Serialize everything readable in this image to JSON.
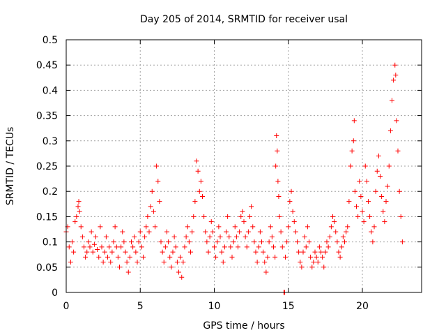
{
  "chart_data": {
    "type": "scatter",
    "title": "Day 205 of 2014, SRMTID for receiver usal",
    "xlabel": "GPS time / hours",
    "ylabel": "SRMTID / TECUs",
    "xlim": [
      0,
      24
    ],
    "ylim": [
      0,
      0.5
    ],
    "x_ticks": [
      0,
      5,
      10,
      15,
      20
    ],
    "x_tick_labels": [
      "0",
      "5",
      "10",
      "15",
      "20"
    ],
    "y_ticks": [
      0,
      0.05,
      0.1,
      0.15,
      0.2,
      0.25,
      0.3,
      0.35,
      0.4,
      0.45,
      0.5
    ],
    "y_tick_labels": [
      "0",
      "0.05",
      "0.1",
      "0.15",
      "0.2",
      "0.25",
      "0.3",
      "0.35",
      "0.4",
      "0.45",
      "0.5"
    ],
    "grid": true,
    "marker": "+",
    "series": [
      {
        "name": "SRMTID",
        "color": "#ff0000",
        "points": [
          [
            0.0,
            0.12
          ],
          [
            0.1,
            0.13
          ],
          [
            0.2,
            0.09
          ],
          [
            0.3,
            0.06
          ],
          [
            0.4,
            0.1
          ],
          [
            0.5,
            0.08
          ],
          [
            0.6,
            0.14
          ],
          [
            0.7,
            0.15
          ],
          [
            0.8,
            0.17
          ],
          [
            0.85,
            0.18
          ],
          [
            0.9,
            0.16
          ],
          [
            1.0,
            0.13
          ],
          [
            1.1,
            0.11
          ],
          [
            1.2,
            0.09
          ],
          [
            1.3,
            0.07
          ],
          [
            1.4,
            0.08
          ],
          [
            1.5,
            0.1
          ],
          [
            1.6,
            0.09
          ],
          [
            1.7,
            0.12
          ],
          [
            1.8,
            0.08
          ],
          [
            1.9,
            0.095
          ],
          [
            2.0,
            0.11
          ],
          [
            2.1,
            0.085
          ],
          [
            2.2,
            0.07
          ],
          [
            2.3,
            0.13
          ],
          [
            2.4,
            0.09
          ],
          [
            2.5,
            0.06
          ],
          [
            2.6,
            0.08
          ],
          [
            2.7,
            0.11
          ],
          [
            2.8,
            0.07
          ],
          [
            2.9,
            0.09
          ],
          [
            3.0,
            0.06
          ],
          [
            3.1,
            0.08
          ],
          [
            3.2,
            0.1
          ],
          [
            3.3,
            0.13
          ],
          [
            3.4,
            0.09
          ],
          [
            3.5,
            0.07
          ],
          [
            3.6,
            0.05
          ],
          [
            3.7,
            0.09
          ],
          [
            3.8,
            0.12
          ],
          [
            3.9,
            0.1
          ],
          [
            4.0,
            0.08
          ],
          [
            4.1,
            0.06
          ],
          [
            4.2,
            0.04
          ],
          [
            4.3,
            0.07
          ],
          [
            4.4,
            0.1
          ],
          [
            4.5,
            0.09
          ],
          [
            4.6,
            0.11
          ],
          [
            4.7,
            0.08
          ],
          [
            4.8,
            0.06
          ],
          [
            4.9,
            0.1
          ],
          [
            5.0,
            0.12
          ],
          [
            5.1,
            0.09
          ],
          [
            5.2,
            0.07
          ],
          [
            5.3,
            0.11
          ],
          [
            5.4,
            0.13
          ],
          [
            5.5,
            0.15
          ],
          [
            5.6,
            0.12
          ],
          [
            5.7,
            0.17
          ],
          [
            5.8,
            0.2
          ],
          [
            5.9,
            0.16
          ],
          [
            6.0,
            0.13
          ],
          [
            6.1,
            0.25
          ],
          [
            6.2,
            0.22
          ],
          [
            6.3,
            0.18
          ],
          [
            6.4,
            0.1
          ],
          [
            6.5,
            0.08
          ],
          [
            6.6,
            0.06
          ],
          [
            6.7,
            0.09
          ],
          [
            6.8,
            0.12
          ],
          [
            6.9,
            0.1
          ],
          [
            7.0,
            0.07
          ],
          [
            7.1,
            0.05
          ],
          [
            7.2,
            0.08
          ],
          [
            7.3,
            0.11
          ],
          [
            7.4,
            0.09
          ],
          [
            7.5,
            0.06
          ],
          [
            7.6,
            0.04
          ],
          [
            7.7,
            0.07
          ],
          [
            7.8,
            0.03
          ],
          [
            7.9,
            0.06
          ],
          [
            8.0,
            0.09
          ],
          [
            8.1,
            0.11
          ],
          [
            8.2,
            0.13
          ],
          [
            8.3,
            0.1
          ],
          [
            8.4,
            0.08
          ],
          [
            8.5,
            0.12
          ],
          [
            8.6,
            0.15
          ],
          [
            8.7,
            0.18
          ],
          [
            8.8,
            0.26
          ],
          [
            8.9,
            0.24
          ],
          [
            9.0,
            0.2
          ],
          [
            9.1,
            0.22
          ],
          [
            9.2,
            0.19
          ],
          [
            9.3,
            0.15
          ],
          [
            9.4,
            0.12
          ],
          [
            9.5,
            0.1
          ],
          [
            9.6,
            0.08
          ],
          [
            9.7,
            0.11
          ],
          [
            9.8,
            0.14
          ],
          [
            9.9,
            0.12
          ],
          [
            10.0,
            0.09
          ],
          [
            10.1,
            0.07
          ],
          [
            10.2,
            0.1
          ],
          [
            10.3,
            0.13
          ],
          [
            10.4,
            0.11
          ],
          [
            10.5,
            0.08
          ],
          [
            10.6,
            0.06
          ],
          [
            10.7,
            0.09
          ],
          [
            10.8,
            0.12
          ],
          [
            10.9,
            0.15
          ],
          [
            11.0,
            0.11
          ],
          [
            11.1,
            0.09
          ],
          [
            11.2,
            0.07
          ],
          [
            11.3,
            0.1
          ],
          [
            11.4,
            0.13
          ],
          [
            11.5,
            0.11
          ],
          [
            11.6,
            0.09
          ],
          [
            11.7,
            0.12
          ],
          [
            11.8,
            0.15
          ],
          [
            11.9,
            0.16
          ],
          [
            12.0,
            0.14
          ],
          [
            12.1,
            0.11
          ],
          [
            12.2,
            0.09
          ],
          [
            12.3,
            0.12
          ],
          [
            12.4,
            0.15
          ],
          [
            12.5,
            0.17
          ],
          [
            12.6,
            0.13
          ],
          [
            12.7,
            0.1
          ],
          [
            12.8,
            0.08
          ],
          [
            12.9,
            0.06
          ],
          [
            13.0,
            0.09
          ],
          [
            13.1,
            0.12
          ],
          [
            13.2,
            0.1
          ],
          [
            13.3,
            0.08
          ],
          [
            13.4,
            0.06
          ],
          [
            13.5,
            0.04
          ],
          [
            13.6,
            0.07
          ],
          [
            13.7,
            0.1
          ],
          [
            13.8,
            0.13
          ],
          [
            13.9,
            0.11
          ],
          [
            14.0,
            0.09
          ],
          [
            14.1,
            0.07
          ],
          [
            14.15,
            0.25
          ],
          [
            14.2,
            0.31
          ],
          [
            14.25,
            0.28
          ],
          [
            14.3,
            0.22
          ],
          [
            14.35,
            0.19
          ],
          [
            14.4,
            0.15
          ],
          [
            14.5,
            0.12
          ],
          [
            14.6,
            0.09
          ],
          [
            14.7,
            0.0
          ],
          [
            14.75,
            0.0
          ],
          [
            14.8,
            0.07
          ],
          [
            14.9,
            0.1
          ],
          [
            15.0,
            0.13
          ],
          [
            15.1,
            0.18
          ],
          [
            15.2,
            0.2
          ],
          [
            15.3,
            0.16
          ],
          [
            15.4,
            0.14
          ],
          [
            15.5,
            0.12
          ],
          [
            15.6,
            0.1
          ],
          [
            15.7,
            0.08
          ],
          [
            15.8,
            0.06
          ],
          [
            15.9,
            0.05
          ],
          [
            16.0,
            0.08
          ],
          [
            16.1,
            0.11
          ],
          [
            16.2,
            0.09
          ],
          [
            16.3,
            0.13
          ],
          [
            16.4,
            0.1
          ],
          [
            16.5,
            0.07
          ],
          [
            16.6,
            0.05
          ],
          [
            16.7,
            0.06
          ],
          [
            16.8,
            0.08
          ],
          [
            16.9,
            0.07
          ],
          [
            17.0,
            0.06
          ],
          [
            17.1,
            0.09
          ],
          [
            17.2,
            0.08
          ],
          [
            17.3,
            0.07
          ],
          [
            17.4,
            0.05
          ],
          [
            17.5,
            0.08
          ],
          [
            17.6,
            0.1
          ],
          [
            17.7,
            0.09
          ],
          [
            17.8,
            0.11
          ],
          [
            17.9,
            0.13
          ],
          [
            18.0,
            0.15
          ],
          [
            18.1,
            0.14
          ],
          [
            18.2,
            0.12
          ],
          [
            18.3,
            0.1
          ],
          [
            18.4,
            0.08
          ],
          [
            18.5,
            0.07
          ],
          [
            18.6,
            0.09
          ],
          [
            18.7,
            0.11
          ],
          [
            18.8,
            0.1
          ],
          [
            18.9,
            0.12
          ],
          [
            19.0,
            0.13
          ],
          [
            19.1,
            0.18
          ],
          [
            19.2,
            0.25
          ],
          [
            19.3,
            0.28
          ],
          [
            19.4,
            0.3
          ],
          [
            19.45,
            0.34
          ],
          [
            19.5,
            0.2
          ],
          [
            19.6,
            0.17
          ],
          [
            19.7,
            0.15
          ],
          [
            19.8,
            0.22
          ],
          [
            19.9,
            0.19
          ],
          [
            20.0,
            0.16
          ],
          [
            20.1,
            0.14
          ],
          [
            20.2,
            0.25
          ],
          [
            20.3,
            0.22
          ],
          [
            20.4,
            0.18
          ],
          [
            20.5,
            0.15
          ],
          [
            20.6,
            0.12
          ],
          [
            20.7,
            0.1
          ],
          [
            20.8,
            0.13
          ],
          [
            20.9,
            0.2
          ],
          [
            21.0,
            0.24
          ],
          [
            21.1,
            0.27
          ],
          [
            21.2,
            0.23
          ],
          [
            21.3,
            0.19
          ],
          [
            21.4,
            0.16
          ],
          [
            21.5,
            0.14
          ],
          [
            21.6,
            0.18
          ],
          [
            21.7,
            0.21
          ],
          [
            21.8,
            0.25
          ],
          [
            21.9,
            0.32
          ],
          [
            22.0,
            0.38
          ],
          [
            22.1,
            0.42
          ],
          [
            22.2,
            0.45
          ],
          [
            22.25,
            0.43
          ],
          [
            22.3,
            0.34
          ],
          [
            22.4,
            0.28
          ],
          [
            22.5,
            0.2
          ],
          [
            22.6,
            0.15
          ],
          [
            22.7,
            0.1
          ]
        ]
      }
    ]
  }
}
